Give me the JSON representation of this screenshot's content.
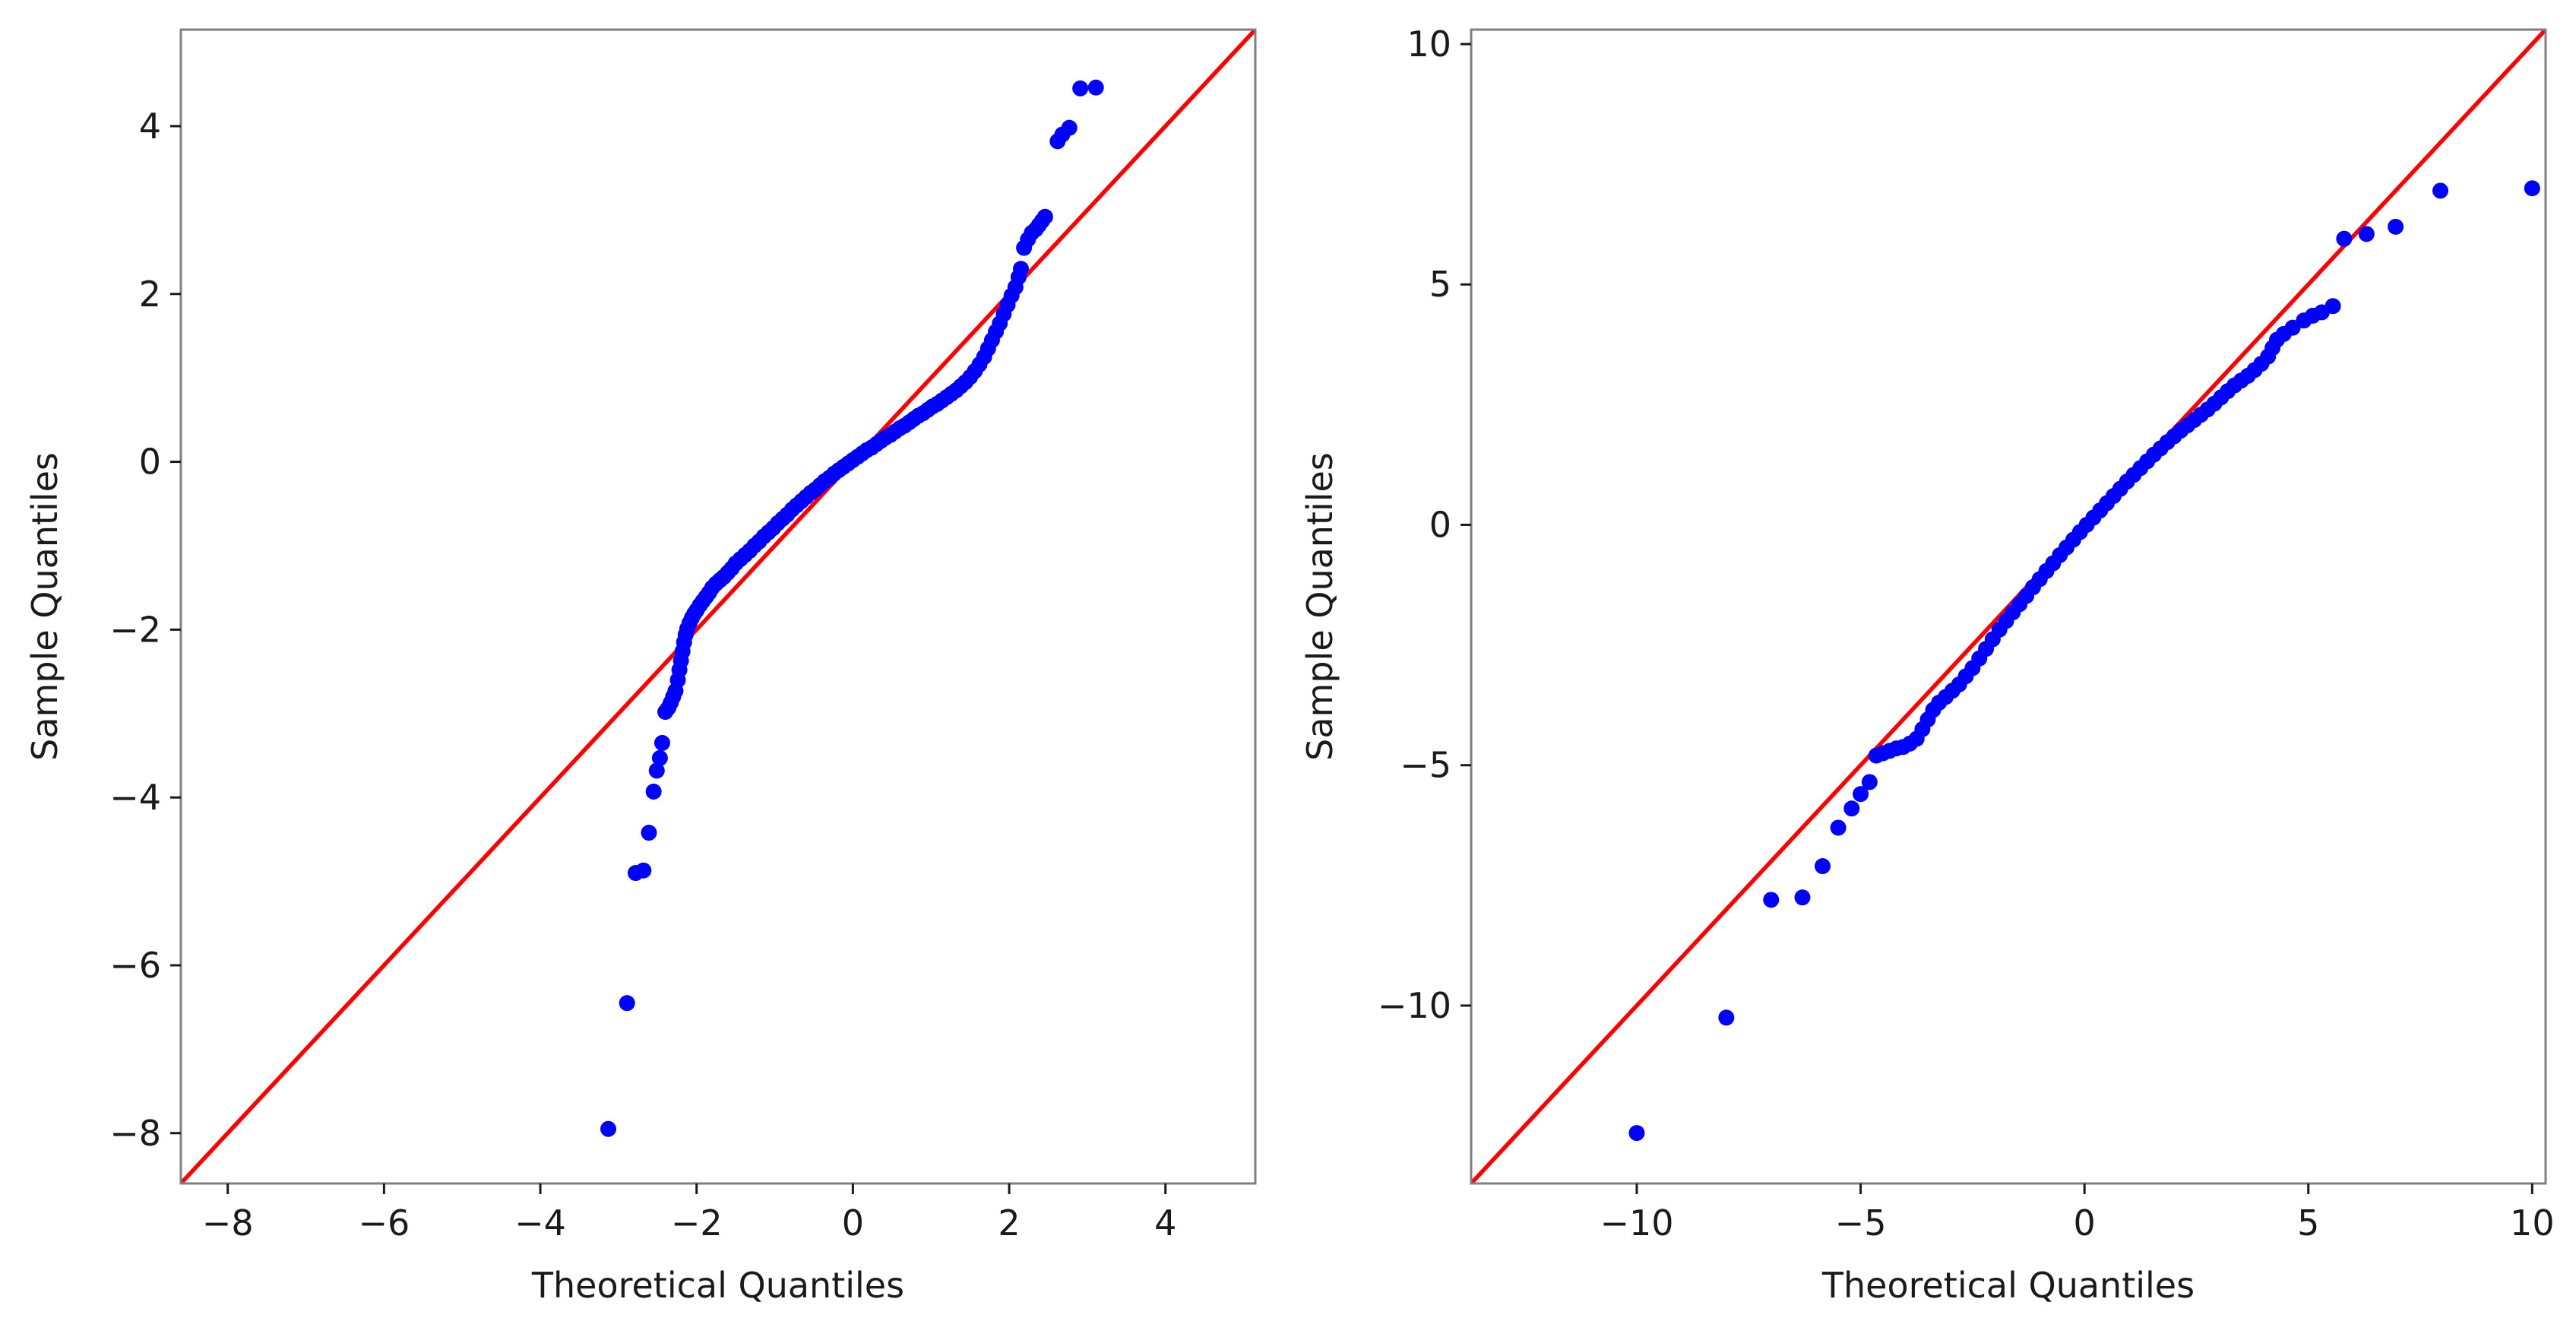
{
  "chart_data": [
    {
      "type": "scatter",
      "title": "",
      "xlabel": "Theoretical Quantiles",
      "ylabel": "Sample Quantiles",
      "xlim": [
        -8.6,
        5.15
      ],
      "ylim": [
        -8.6,
        5.15
      ],
      "xticks": [
        -8,
        -6,
        -4,
        -2,
        0,
        2,
        4
      ],
      "yticks": [
        -8,
        -6,
        -4,
        -2,
        0,
        2,
        4
      ],
      "tick_labels_x": [
        "−8",
        "−6",
        "−4",
        "−2",
        "0",
        "2",
        "4"
      ],
      "tick_labels_y": [
        "−8",
        "−6",
        "−4",
        "−2",
        "0",
        "2",
        "4"
      ],
      "grid": false,
      "marker_color": "#0000ff",
      "line_color": "#ff0000",
      "reference_line": "45-degree (y = x)",
      "series": [
        {
          "points": [
            [
              -3.13,
              -7.95
            ],
            [
              -2.89,
              -6.45
            ],
            [
              -2.78,
              -4.9
            ],
            [
              -2.68,
              -4.87
            ],
            [
              -2.61,
              -4.42
            ],
            [
              -2.55,
              -3.93
            ],
            [
              -2.51,
              -3.68
            ],
            [
              -2.47,
              -3.53
            ],
            [
              -2.44,
              -3.35
            ],
            [
              -2.4,
              -2.98
            ],
            [
              -2.36,
              -2.93
            ],
            [
              -2.33,
              -2.87
            ],
            [
              -2.3,
              -2.8
            ],
            [
              -2.27,
              -2.73
            ],
            [
              -2.24,
              -2.6
            ],
            [
              -2.22,
              -2.48
            ],
            [
              -2.2,
              -2.37
            ],
            [
              -2.18,
              -2.26
            ],
            [
              -2.16,
              -2.15
            ],
            [
              -2.14,
              -2.06
            ],
            [
              -2.12,
              -1.99
            ],
            [
              -2.09,
              -1.92
            ],
            [
              -2.06,
              -1.86
            ],
            [
              -2.03,
              -1.81
            ],
            [
              -2.0,
              -1.77
            ],
            [
              -1.96,
              -1.71
            ],
            [
              -1.92,
              -1.66
            ],
            [
              -1.88,
              -1.61
            ],
            [
              -1.84,
              -1.56
            ],
            [
              -1.8,
              -1.5
            ],
            [
              -1.75,
              -1.45
            ],
            [
              -1.7,
              -1.41
            ],
            [
              -1.65,
              -1.37
            ],
            [
              -1.6,
              -1.32
            ],
            [
              -1.55,
              -1.27
            ],
            [
              -1.5,
              -1.21
            ],
            [
              -1.44,
              -1.16
            ],
            [
              -1.38,
              -1.11
            ],
            [
              -1.32,
              -1.06
            ],
            [
              -1.26,
              -1.0
            ],
            [
              -1.2,
              -0.95
            ],
            [
              -1.14,
              -0.89
            ],
            [
              -1.08,
              -0.84
            ],
            [
              -1.02,
              -0.79
            ],
            [
              -0.96,
              -0.73
            ],
            [
              -0.9,
              -0.68
            ],
            [
              -0.84,
              -0.63
            ],
            [
              -0.78,
              -0.57
            ],
            [
              -0.72,
              -0.52
            ],
            [
              -0.66,
              -0.47
            ],
            [
              -0.6,
              -0.42
            ],
            [
              -0.54,
              -0.37
            ],
            [
              -0.48,
              -0.33
            ],
            [
              -0.42,
              -0.28
            ],
            [
              -0.36,
              -0.23
            ],
            [
              -0.3,
              -0.19
            ],
            [
              -0.24,
              -0.14
            ],
            [
              -0.18,
              -0.1
            ],
            [
              -0.12,
              -0.06
            ],
            [
              -0.06,
              -0.02
            ],
            [
              0.0,
              0.02
            ],
            [
              0.06,
              0.06
            ],
            [
              0.12,
              0.1
            ],
            [
              0.18,
              0.14
            ],
            [
              0.24,
              0.17
            ],
            [
              0.3,
              0.21
            ],
            [
              0.36,
              0.25
            ],
            [
              0.42,
              0.29
            ],
            [
              0.48,
              0.32
            ],
            [
              0.54,
              0.36
            ],
            [
              0.6,
              0.4
            ],
            [
              0.66,
              0.43
            ],
            [
              0.72,
              0.47
            ],
            [
              0.78,
              0.51
            ],
            [
              0.84,
              0.55
            ],
            [
              0.9,
              0.58
            ],
            [
              0.96,
              0.62
            ],
            [
              1.02,
              0.66
            ],
            [
              1.08,
              0.69
            ],
            [
              1.14,
              0.73
            ],
            [
              1.2,
              0.77
            ],
            [
              1.26,
              0.81
            ],
            [
              1.32,
              0.85
            ],
            [
              1.38,
              0.9
            ],
            [
              1.44,
              0.95
            ],
            [
              1.5,
              1.01
            ],
            [
              1.56,
              1.08
            ],
            [
              1.62,
              1.16
            ],
            [
              1.68,
              1.25
            ],
            [
              1.73,
              1.35
            ],
            [
              1.78,
              1.45
            ],
            [
              1.83,
              1.55
            ],
            [
              1.88,
              1.65
            ],
            [
              1.93,
              1.76
            ],
            [
              1.98,
              1.87
            ],
            [
              2.03,
              1.98
            ],
            [
              2.08,
              2.08
            ],
            [
              2.12,
              2.2
            ],
            [
              2.15,
              2.3
            ],
            [
              2.19,
              2.55
            ],
            [
              2.24,
              2.65
            ],
            [
              2.29,
              2.73
            ],
            [
              2.34,
              2.77
            ],
            [
              2.38,
              2.82
            ],
            [
              2.42,
              2.87
            ],
            [
              2.46,
              2.92
            ],
            [
              2.62,
              3.82
            ],
            [
              2.68,
              3.9
            ],
            [
              2.77,
              3.98
            ],
            [
              2.91,
              4.45
            ],
            [
              3.11,
              4.46
            ]
          ]
        }
      ]
    },
    {
      "type": "scatter",
      "title": "",
      "xlabel": "Theoretical Quantiles",
      "ylabel": "Sample Quantiles",
      "xlim": [
        -13.7,
        10.3
      ],
      "ylim": [
        -13.7,
        10.3
      ],
      "xticks": [
        -10,
        -5,
        0,
        5,
        10
      ],
      "yticks": [
        -10,
        -5,
        0,
        5,
        10
      ],
      "tick_labels_x": [
        "−10",
        "−5",
        "0",
        "5",
        "10"
      ],
      "tick_labels_y": [
        "−10",
        "−5",
        "0",
        "5",
        "10"
      ],
      "grid": false,
      "marker_color": "#0000ff",
      "line_color": "#ff0000",
      "reference_line": "45-degree (y = x)",
      "series": [
        {
          "points": [
            [
              -10.0,
              -12.65
            ],
            [
              -8.0,
              -10.25
            ],
            [
              -7.0,
              -7.8
            ],
            [
              -6.3,
              -7.75
            ],
            [
              -5.85,
              -7.1
            ],
            [
              -5.5,
              -6.3
            ],
            [
              -5.2,
              -5.9
            ],
            [
              -5.0,
              -5.6
            ],
            [
              -4.8,
              -5.35
            ],
            [
              -4.65,
              -4.8
            ],
            [
              -4.5,
              -4.75
            ],
            [
              -4.35,
              -4.7
            ],
            [
              -4.2,
              -4.65
            ],
            [
              -4.05,
              -4.62
            ],
            [
              -3.9,
              -4.55
            ],
            [
              -3.75,
              -4.45
            ],
            [
              -3.62,
              -4.25
            ],
            [
              -3.5,
              -4.05
            ],
            [
              -3.38,
              -3.85
            ],
            [
              -3.25,
              -3.7
            ],
            [
              -3.1,
              -3.58
            ],
            [
              -2.95,
              -3.45
            ],
            [
              -2.8,
              -3.32
            ],
            [
              -2.65,
              -3.15
            ],
            [
              -2.5,
              -2.98
            ],
            [
              -2.35,
              -2.78
            ],
            [
              -2.2,
              -2.58
            ],
            [
              -2.05,
              -2.38
            ],
            [
              -1.9,
              -2.18
            ],
            [
              -1.75,
              -2.0
            ],
            [
              -1.6,
              -1.82
            ],
            [
              -1.45,
              -1.65
            ],
            [
              -1.3,
              -1.48
            ],
            [
              -1.15,
              -1.3
            ],
            [
              -1.0,
              -1.13
            ],
            [
              -0.85,
              -0.96
            ],
            [
              -0.7,
              -0.8
            ],
            [
              -0.55,
              -0.63
            ],
            [
              -0.4,
              -0.47
            ],
            [
              -0.25,
              -0.31
            ],
            [
              -0.1,
              -0.15
            ],
            [
              0.05,
              0.0
            ],
            [
              0.2,
              0.15
            ],
            [
              0.35,
              0.3
            ],
            [
              0.5,
              0.45
            ],
            [
              0.65,
              0.6
            ],
            [
              0.8,
              0.75
            ],
            [
              0.95,
              0.9
            ],
            [
              1.1,
              1.04
            ],
            [
              1.25,
              1.18
            ],
            [
              1.4,
              1.32
            ],
            [
              1.55,
              1.46
            ],
            [
              1.7,
              1.59
            ],
            [
              1.85,
              1.72
            ],
            [
              2.0,
              1.84
            ],
            [
              2.15,
              1.96
            ],
            [
              2.3,
              2.07
            ],
            [
              2.45,
              2.18
            ],
            [
              2.6,
              2.29
            ],
            [
              2.75,
              2.4
            ],
            [
              2.9,
              2.52
            ],
            [
              3.05,
              2.65
            ],
            [
              3.2,
              2.78
            ],
            [
              3.35,
              2.9
            ],
            [
              3.5,
              3.0
            ],
            [
              3.65,
              3.1
            ],
            [
              3.8,
              3.22
            ],
            [
              3.95,
              3.35
            ],
            [
              4.1,
              3.5
            ],
            [
              4.2,
              3.68
            ],
            [
              4.3,
              3.85
            ],
            [
              4.45,
              3.97
            ],
            [
              4.65,
              4.1
            ],
            [
              4.9,
              4.25
            ],
            [
              5.1,
              4.35
            ],
            [
              5.3,
              4.42
            ],
            [
              5.55,
              4.55
            ],
            [
              5.8,
              5.95
            ],
            [
              6.3,
              6.05
            ],
            [
              6.95,
              6.2
            ],
            [
              7.95,
              6.95
            ],
            [
              10.0,
              7.0
            ]
          ]
        }
      ]
    }
  ]
}
